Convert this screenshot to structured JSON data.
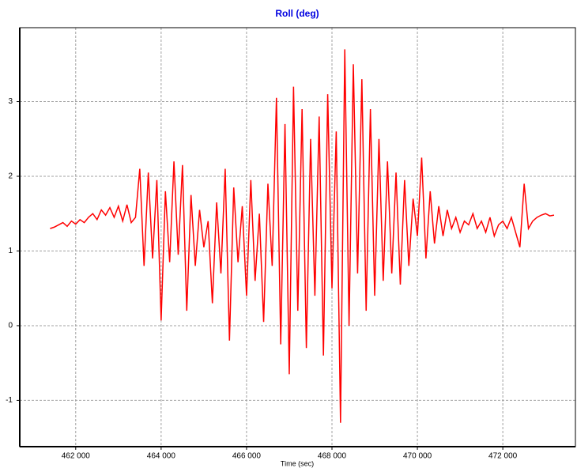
{
  "chart_data": {
    "type": "line",
    "title": "Roll (deg)",
    "x_label": "Time (sec)",
    "x": [
      461400,
      461500,
      461600,
      461700,
      461800,
      461900,
      462000,
      462100,
      462200,
      462300,
      462400,
      462500,
      462600,
      462700,
      462800,
      462900,
      463000,
      463100,
      463200,
      463300,
      463400,
      463500,
      463600,
      463700,
      463800,
      463900,
      464000,
      464100,
      464200,
      464300,
      464400,
      464500,
      464600,
      464700,
      464800,
      464900,
      465000,
      465100,
      465200,
      465300,
      465400,
      465500,
      465600,
      465700,
      465800,
      465900,
      466000,
      466100,
      466200,
      466300,
      466400,
      466500,
      466600,
      466700,
      466800,
      466900,
      467000,
      467100,
      467200,
      467300,
      467400,
      467500,
      467600,
      467700,
      467800,
      467900,
      468000,
      468100,
      468200,
      468300,
      468400,
      468500,
      468600,
      468700,
      468800,
      468900,
      469000,
      469100,
      469200,
      469300,
      469400,
      469500,
      469600,
      469700,
      469800,
      469900,
      470000,
      470100,
      470200,
      470300,
      470400,
      470500,
      470600,
      470700,
      470800,
      470900,
      471000,
      471100,
      471200,
      471300,
      471400,
      471500,
      471600,
      471700,
      471800,
      471900,
      472000,
      472100,
      472200,
      472300,
      472400,
      472500,
      472600,
      472700,
      472800,
      472900,
      473000,
      473100,
      473200
    ],
    "series": [
      {
        "name": "Roll",
        "color": "#ff0000",
        "values": [
          1.3,
          1.32,
          1.35,
          1.38,
          1.33,
          1.4,
          1.36,
          1.42,
          1.38,
          1.45,
          1.5,
          1.42,
          1.55,
          1.48,
          1.58,
          1.45,
          1.6,
          1.4,
          1.62,
          1.38,
          1.45,
          2.1,
          0.8,
          2.05,
          0.9,
          1.95,
          0.07,
          1.8,
          0.85,
          2.2,
          0.95,
          2.15,
          0.2,
          1.75,
          0.8,
          1.55,
          1.05,
          1.4,
          0.3,
          1.65,
          0.7,
          2.1,
          -0.2,
          1.85,
          0.85,
          1.6,
          0.4,
          1.95,
          0.6,
          1.5,
          0.05,
          1.9,
          0.8,
          3.05,
          -0.25,
          2.7,
          -0.65,
          3.2,
          0.2,
          2.9,
          -0.3,
          2.5,
          0.4,
          2.8,
          -0.4,
          3.1,
          0.5,
          2.6,
          -1.3,
          3.7,
          0.0,
          3.5,
          0.7,
          3.3,
          0.2,
          2.9,
          0.4,
          2.5,
          0.6,
          2.2,
          0.7,
          2.05,
          0.55,
          1.95,
          0.8,
          1.7,
          1.2,
          2.25,
          0.9,
          1.8,
          1.1,
          1.6,
          1.2,
          1.55,
          1.3,
          1.45,
          1.25,
          1.4,
          1.35,
          1.5,
          1.3,
          1.4,
          1.25,
          1.45,
          1.2,
          1.35,
          1.4,
          1.3,
          1.45,
          1.25,
          1.05,
          1.9,
          1.3,
          1.4,
          1.45,
          1.48,
          1.5,
          1.47,
          1.48
        ]
      }
    ],
    "xlim": [
      460690,
      473700
    ],
    "ylim": [
      -1.62,
      3.99
    ],
    "xticks": [
      {
        "value": 462000,
        "label": "462 000"
      },
      {
        "value": 464000,
        "label": "464 000"
      },
      {
        "value": 466000,
        "label": "466 000"
      },
      {
        "value": 468000,
        "label": "468 000"
      },
      {
        "value": 470000,
        "label": "470 000"
      },
      {
        "value": 472000,
        "label": "472 000"
      }
    ],
    "yticks": [
      -1,
      0,
      1,
      2,
      3
    ],
    "grid": true
  }
}
